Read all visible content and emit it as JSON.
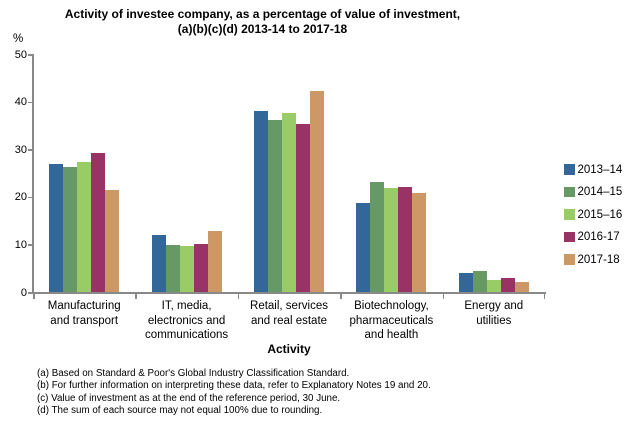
{
  "title": {
    "line1": "Activity of investee company, as a percentage of value of investment,",
    "line2": "(a)(b)(c)(d)  2013-14  to 2017-18"
  },
  "y_axis": {
    "unit_label": "%",
    "ticks": [
      0,
      10,
      20,
      30,
      40,
      50
    ],
    "max": 50
  },
  "x_axis": {
    "title": "Activity"
  },
  "chart_data": {
    "type": "bar",
    "title": "Activity of investee company, as a percentage of value of investment, (a)(b)(c)(d) 2013-14 to 2017-18",
    "xlabel": "Activity",
    "ylabel": "%",
    "ylim": [
      0,
      50
    ],
    "grid": false,
    "legend_position": "right",
    "categories": [
      "Manufacturing and transport",
      "IT, media, electronics and communications",
      "Retail, services and real estate",
      "Biotechnology, pharmaceuticals and health",
      "Energy and utilities"
    ],
    "category_label_lines": [
      "Manufacturing\nand transport",
      "IT, media,\nelectronics and\ncommunications",
      "Retail, services\nand real estate",
      "Biotechnology,\npharmaceuticals\nand health",
      "Energy and\nutilities"
    ],
    "series": [
      {
        "name": "2013–14",
        "color": "#336699",
        "values": [
          26.8,
          11.9,
          38.1,
          18.8,
          4.0
        ]
      },
      {
        "name": "2014–15",
        "color": "#669966",
        "values": [
          26.3,
          9.8,
          36.2,
          23.2,
          4.4
        ]
      },
      {
        "name": "2015–16",
        "color": "#99CC66",
        "values": [
          27.3,
          9.7,
          37.6,
          21.9,
          2.5
        ]
      },
      {
        "name": "2016-17",
        "color": "#993366",
        "values": [
          29.2,
          10.0,
          35.2,
          22.0,
          2.9
        ]
      },
      {
        "name": "2017-18",
        "color": "#CC9966",
        "values": [
          21.4,
          12.9,
          42.3,
          20.7,
          2.2
        ]
      }
    ]
  },
  "footnotes": [
    "(a) Based on Standard & Poor's Global Industry Classification Standard.",
    "(b) For further information on interpreting these data, refer to Explanatory Notes 19 and 20.",
    "(c) Value of investment as at the end of the reference period, 30 June.",
    "(d) The sum of each source may not equal 100% due to rounding."
  ],
  "colors": {
    "axis": "#898989",
    "text": "#000000",
    "background": "#ffffff"
  }
}
